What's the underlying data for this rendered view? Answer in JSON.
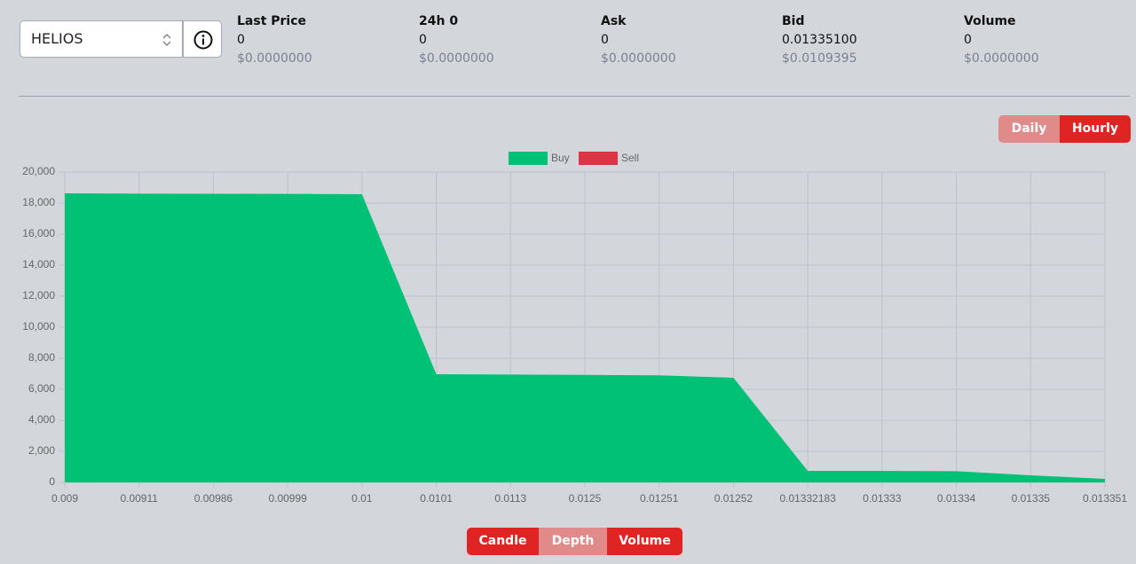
{
  "selector": {
    "value": "HELIOS"
  },
  "stats": [
    {
      "label": "Last Price",
      "value": "0",
      "usd": "$0.0000000"
    },
    {
      "label": "24h 0",
      "value": "0",
      "usd": "$0.0000000"
    },
    {
      "label": "Ask",
      "value": "0",
      "usd": "$0.0000000"
    },
    {
      "label": "Bid",
      "value": "0.01335100",
      "usd": "$0.0109395"
    },
    {
      "label": "Volume",
      "value": "0",
      "usd": "$0.0000000"
    }
  ],
  "range_buttons": [
    "Daily",
    "Hourly"
  ],
  "view_buttons": [
    "Candle",
    "Depth",
    "Volume"
  ],
  "chart_data": {
    "type": "area",
    "categories": [
      "0.009",
      "0.00911",
      "0.00986",
      "0.00999",
      "0.01",
      "0.0101",
      "0.0113",
      "0.0125",
      "0.01251",
      "0.01252",
      "0.01332183",
      "0.01333",
      "0.01334",
      "0.01335",
      "0.013351"
    ],
    "series": [
      {
        "name": "Buy",
        "color": "#00c176",
        "values": [
          18630,
          18610,
          18600,
          18590,
          18570,
          6970,
          6950,
          6930,
          6900,
          6740,
          740,
          740,
          720,
          460,
          230
        ]
      },
      {
        "name": "Sell",
        "color": "#dc3545",
        "values": [
          null,
          null,
          null,
          null,
          null,
          null,
          null,
          null,
          null,
          null,
          null,
          null,
          null,
          null,
          null
        ]
      }
    ],
    "ylim": [
      0,
      20000
    ],
    "yticks": [
      0,
      {
        "value": 2000,
        "label": "2,000"
      },
      {
        "value": 4000,
        "label": "4,000"
      },
      {
        "value": 6000,
        "label": "6,000"
      },
      {
        "value": 8000,
        "label": "8,000"
      },
      {
        "value": 10000,
        "label": "10,000"
      },
      {
        "value": 12000,
        "label": "12,000"
      },
      {
        "value": 14000,
        "label": "14,000"
      },
      {
        "value": 16000,
        "label": "16,000"
      },
      {
        "value": 18000,
        "label": "18,000"
      },
      {
        "value": 20000,
        "label": "20,000"
      }
    ],
    "grid": true,
    "legend": "top"
  }
}
